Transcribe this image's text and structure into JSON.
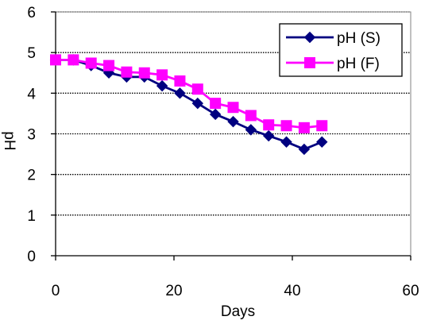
{
  "chart_data": {
    "type": "line",
    "xlabel": "Days",
    "ylabel": "pH",
    "xlim": [
      0,
      60
    ],
    "ylim": [
      0,
      6
    ],
    "x_ticks": [
      0,
      20,
      40,
      60
    ],
    "y_ticks": [
      0,
      1,
      2,
      3,
      4,
      5,
      6
    ],
    "grid": "horizontal dotted",
    "legend_position": "top-right",
    "series": [
      {
        "name": "pH (S)",
        "color": "#000080",
        "marker": "diamond",
        "x": [
          0,
          3,
          6,
          9,
          12,
          15,
          18,
          21,
          24,
          27,
          30,
          33,
          36,
          39,
          42,
          45
        ],
        "y": [
          4.82,
          4.82,
          4.68,
          4.5,
          4.4,
          4.4,
          4.18,
          4.0,
          3.75,
          3.48,
          3.3,
          3.1,
          2.95,
          2.8,
          2.62,
          2.8
        ]
      },
      {
        "name": "pH (F)",
        "color": "#FF00FF",
        "marker": "square",
        "x": [
          0,
          3,
          6,
          9,
          12,
          15,
          18,
          21,
          24,
          27,
          30,
          33,
          36,
          39,
          42,
          45
        ],
        "y": [
          4.82,
          4.82,
          4.74,
          4.68,
          4.52,
          4.5,
          4.45,
          4.3,
          4.1,
          3.75,
          3.65,
          3.45,
          3.22,
          3.2,
          3.15,
          3.2
        ]
      }
    ]
  }
}
